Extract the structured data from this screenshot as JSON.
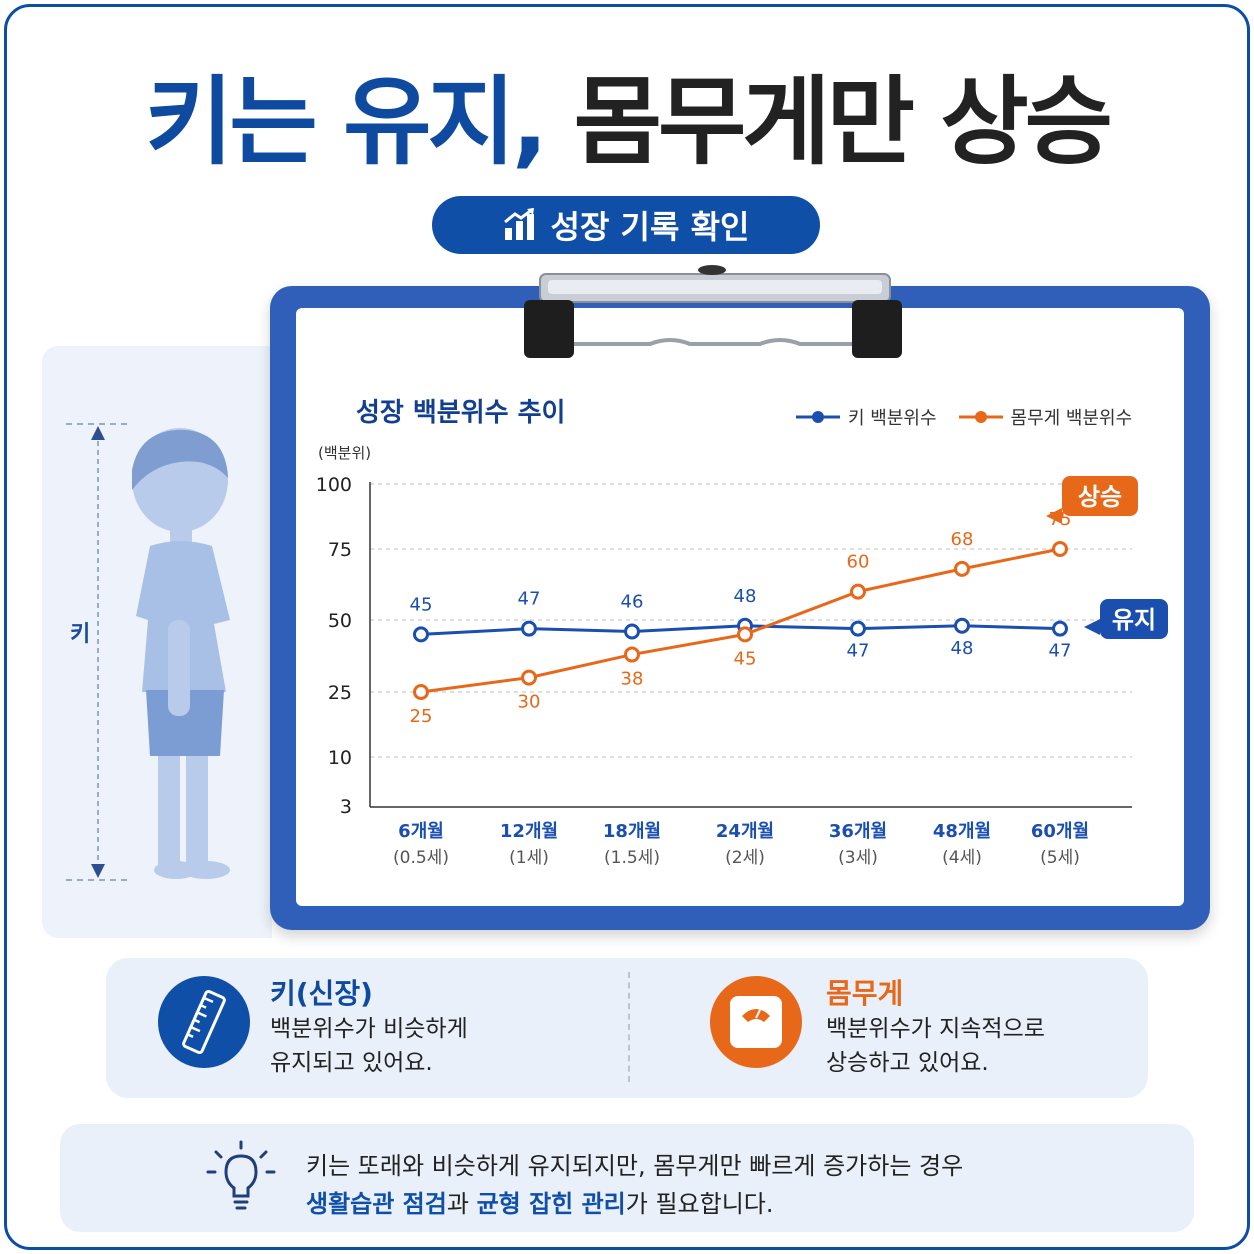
{
  "headline": {
    "part1": "키는 유지,",
    "part2": "몸무게만 상승"
  },
  "pill_label": "성장 기록 확인",
  "figure": {
    "label": "키"
  },
  "chart_data": {
    "type": "line",
    "title": "성장 백분위수 추이",
    "ylabel": "(백분위)",
    "y_ticks": [
      100,
      75,
      50,
      25,
      10,
      3
    ],
    "categories": [
      "6개월",
      "12개월",
      "18개월",
      "24개월",
      "36개월",
      "48개월",
      "60개월"
    ],
    "category_sublabels": [
      "(0.5세)",
      "(1세)",
      "(1.5세)",
      "(2세)",
      "(3세)",
      "(4세)",
      "(5세)"
    ],
    "series": [
      {
        "name": "키 백분위수",
        "color": "#1a4fb0",
        "values": [
          45,
          47,
          46,
          48,
          47,
          48,
          47
        ],
        "callout": "유지"
      },
      {
        "name": "몸무게 백분위수",
        "color": "#e8681a",
        "values": [
          25,
          30,
          38,
          45,
          60,
          68,
          75
        ],
        "callout": "상승"
      }
    ],
    "grid": true,
    "legend_position": "top-right"
  },
  "info": {
    "height_title": "키(신장)",
    "height_line1": "백분위수가 비슷하게",
    "height_line2": "유지되고 있어요.",
    "weight_title": "몸무게",
    "weight_line1": "백분위수가 지속적으로",
    "weight_line2": "상승하고 있어요."
  },
  "tip": {
    "line1": "키는 또래와 비슷하게 유지되지만,  몸무게만 빠르게 증가하는 경우",
    "em1": "생활습관 점검",
    "mid1": "과 ",
    "em2": "균형 잡힌 관리",
    "end": "가 필요합니다."
  },
  "colors": {
    "blue": "#1a4fb0",
    "orange": "#e8681a",
    "navy": "#0e4aa0"
  },
  "icons": {
    "pill": "bar-chart-up-icon",
    "height": "ruler-icon",
    "weight": "scale-icon",
    "tip": "lightbulb-icon"
  }
}
